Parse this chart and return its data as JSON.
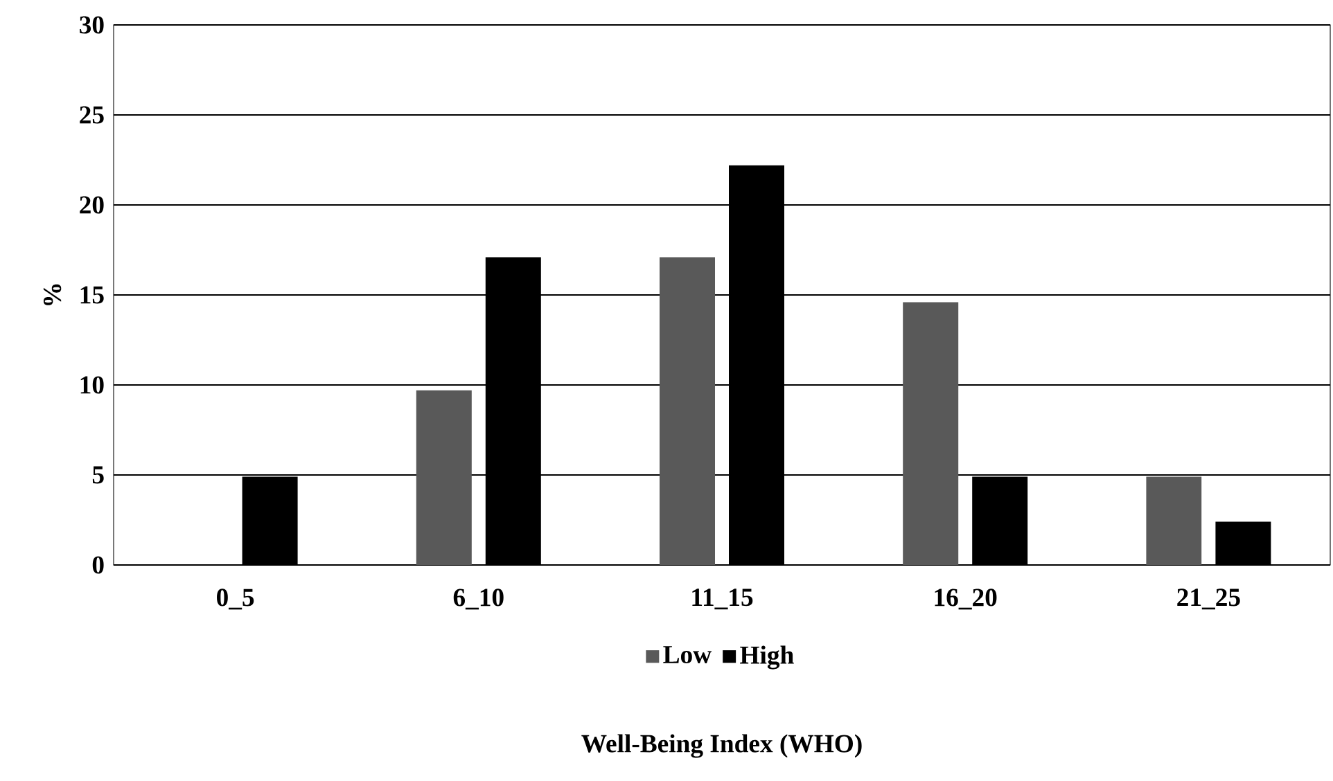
{
  "chart_data": {
    "type": "bar",
    "xlabel": "Well-Being Index (WHO)",
    "ylabel": "%",
    "categories": [
      "0_5",
      "6_10",
      "11_15",
      "16_20",
      "21_25"
    ],
    "series": [
      {
        "name": "Low",
        "color": "#595959",
        "values": [
          0,
          9.7,
          17.1,
          14.6,
          4.9
        ]
      },
      {
        "name": "High",
        "color": "#000000",
        "values": [
          4.9,
          17.1,
          22.2,
          4.9,
          2.4
        ]
      }
    ],
    "ylim": [
      0,
      30
    ],
    "yticks": [
      0,
      5,
      10,
      15,
      20,
      25,
      30
    ],
    "grid": "y",
    "legend": "bottom"
  }
}
